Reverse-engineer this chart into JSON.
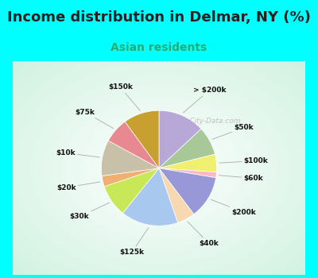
{
  "title": "Income distribution in Delmar, NY (%)",
  "subtitle": "Asian residents",
  "subtitle_color": "#2eaa6e",
  "title_fontsize": 13,
  "subtitle_fontsize": 10,
  "background_outer": "#00ffff",
  "watermark": "    City-Data.com",
  "labels": [
    "> $200k",
    "$50k",
    "$100k",
    "$60k",
    "$200k",
    "$40k",
    "$125k",
    "$30k",
    "$20k",
    "$10k",
    "$75k",
    "$150k"
  ],
  "values": [
    13,
    8,
    5,
    1.5,
    12,
    5,
    16,
    9,
    3,
    10,
    7,
    10
  ],
  "colors": [
    "#b8a8d8",
    "#a8c898",
    "#f0f070",
    "#ffb8c0",
    "#9898d8",
    "#f8d8b0",
    "#a8c8f0",
    "#c8e858",
    "#f0b070",
    "#c8c0a8",
    "#e88890",
    "#c8a030"
  ]
}
